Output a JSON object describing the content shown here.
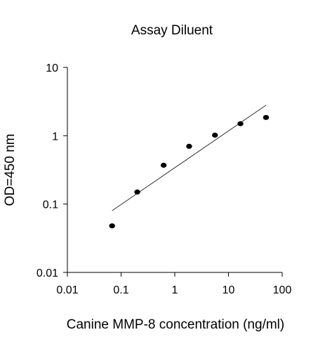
{
  "chart_data": {
    "type": "scatter",
    "title": "Assay Diluent",
    "xlabel": "Canine MMP-8 concentration (ng/ml)",
    "ylabel": "OD=450 nm",
    "xscale": "log",
    "yscale": "log",
    "xlim": [
      0.01,
      100
    ],
    "ylim": [
      0.01,
      10
    ],
    "xticks": [
      "0.01",
      "0.1",
      "1",
      "10",
      "100"
    ],
    "yticks": [
      "0.01",
      "0.1",
      "1",
      "10"
    ],
    "grid": false,
    "legend": "none",
    "points": [
      {
        "x": 0.068,
        "y": 0.048
      },
      {
        "x": 0.2,
        "y": 0.15
      },
      {
        "x": 0.62,
        "y": 0.37
      },
      {
        "x": 1.85,
        "y": 0.7
      },
      {
        "x": 5.6,
        "y": 1.02
      },
      {
        "x": 16.7,
        "y": 1.5
      },
      {
        "x": 50,
        "y": 1.85
      }
    ],
    "fit_line": [
      {
        "x": 0.068,
        "y": 0.08
      },
      {
        "x": 50,
        "y": 2.8
      }
    ]
  }
}
